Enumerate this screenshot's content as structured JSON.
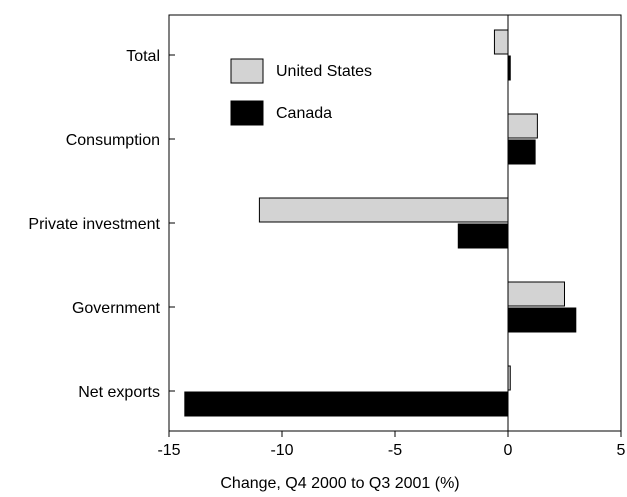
{
  "chart_data": {
    "type": "bar",
    "orientation": "horizontal",
    "categories": [
      "Total",
      "Consumption",
      "Private investment",
      "Government",
      "Net exports"
    ],
    "series": [
      {
        "name": "United States",
        "color": "#d3d3d3",
        "values": [
          -0.6,
          1.3,
          -11.0,
          2.5,
          0.1
        ]
      },
      {
        "name": "Canada",
        "color": "#000000",
        "values": [
          0.1,
          1.2,
          -2.2,
          3.0,
          -14.3
        ]
      }
    ],
    "xlabel": "Change, Q4 2000 to Q3 2001 (%)",
    "xlim": [
      -15,
      5
    ],
    "xticks": [
      -15,
      -10,
      -5,
      0,
      5
    ],
    "xtick_labels": [
      "-15",
      "-10",
      "-5",
      "0",
      "5"
    ],
    "grid": false,
    "legend_position": "top-left"
  }
}
